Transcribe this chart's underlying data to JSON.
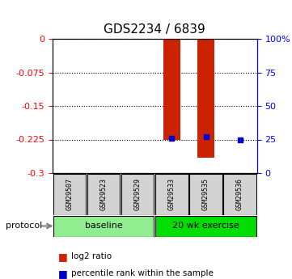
{
  "title": "GDS2234 / 6839",
  "samples": [
    "GSM29507",
    "GSM29523",
    "GSM29529",
    "GSM29533",
    "GSM29535",
    "GSM29536"
  ],
  "log2_ratio": [
    null,
    null,
    null,
    -0.225,
    -0.265,
    0.0
  ],
  "percentile_rank": [
    null,
    null,
    null,
    26.0,
    27.0,
    25.0
  ],
  "groups": [
    {
      "label": "baseline",
      "start": 0,
      "end": 3,
      "color": "#90EE90"
    },
    {
      "label": "20 wk exercise",
      "start": 3,
      "end": 6,
      "color": "#00EE00"
    }
  ],
  "ylim_left": [
    -0.3,
    0.0
  ],
  "ylim_right": [
    0,
    100
  ],
  "yticks_left": [
    0,
    -0.075,
    -0.15,
    -0.225,
    -0.3
  ],
  "yticks_right": [
    0,
    25,
    50,
    75,
    100
  ],
  "ytick_labels_left": [
    "0",
    "-0.075",
    "-0.15",
    "-0.225",
    "-0.3"
  ],
  "ytick_labels_right": [
    "0",
    "25",
    "50",
    "75",
    "100%"
  ],
  "bar_color": "#CC2200",
  "marker_color": "#0000CC",
  "bar_width": 0.5,
  "background_color": "#ffffff",
  "plot_bg": "#ffffff",
  "grid_color": "#000000",
  "grid_style": "dotted",
  "protocol_label": "protocol",
  "legend_items": [
    {
      "color": "#CC2200",
      "label": "log2 ratio"
    },
    {
      "color": "#0000CC",
      "label": "percentile rank within the sample"
    }
  ]
}
